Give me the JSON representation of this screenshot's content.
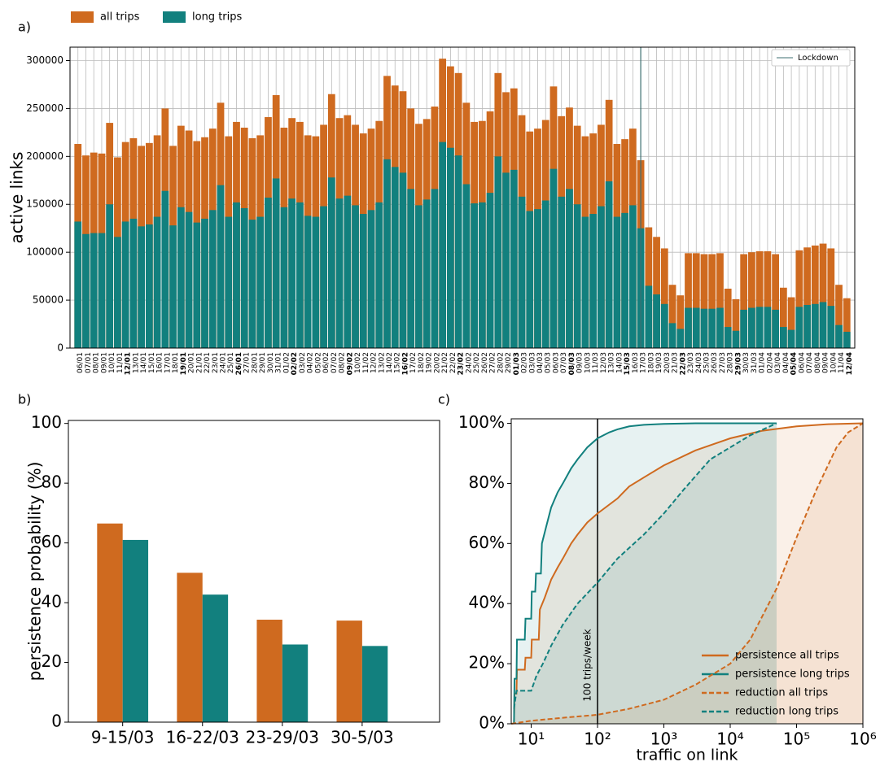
{
  "chart_data": [
    {
      "type": "bar",
      "bar_mode": "overlay",
      "panel_label": "a)",
      "ylabel": "active links",
      "categories": [
        "06/01",
        "07/01",
        "08/01",
        "09/01",
        "10/01",
        "11/01",
        "12/01",
        "13/01",
        "14/01",
        "15/01",
        "16/01",
        "17/01",
        "18/01",
        "19/01",
        "20/01",
        "21/01",
        "22/01",
        "23/01",
        "24/01",
        "25/01",
        "26/01",
        "27/01",
        "28/01",
        "29/01",
        "30/01",
        "31/01",
        "01/02",
        "02/02",
        "03/02",
        "04/02",
        "05/02",
        "06/02",
        "07/02",
        "08/02",
        "09/02",
        "10/02",
        "11/02",
        "12/02",
        "13/02",
        "14/02",
        "15/02",
        "16/02",
        "17/02",
        "18/02",
        "19/02",
        "20/02",
        "21/02",
        "22/02",
        "23/02",
        "24/02",
        "25/02",
        "26/02",
        "27/02",
        "28/02",
        "29/02",
        "01/03",
        "02/03",
        "03/03",
        "04/03",
        "05/03",
        "06/03",
        "07/03",
        "08/03",
        "09/03",
        "10/03",
        "11/03",
        "12/03",
        "13/03",
        "14/03",
        "15/03",
        "16/03",
        "17/03",
        "18/03",
        "19/03",
        "20/03",
        "21/03",
        "22/03",
        "23/03",
        "24/03",
        "25/03",
        "26/03",
        "27/03",
        "28/03",
        "29/03",
        "30/03",
        "31/03",
        "01/04",
        "02/04",
        "03/04",
        "04/04",
        "05/04",
        "06/04",
        "07/04",
        "08/04",
        "09/04",
        "10/04",
        "11/04",
        "12/04"
      ],
      "series": [
        {
          "name": "all trips",
          "color": "#cf6a1f",
          "values": [
            213000,
            201000,
            204000,
            203000,
            235000,
            199000,
            215000,
            219000,
            211000,
            214000,
            222000,
            250000,
            211000,
            232000,
            227000,
            216000,
            220000,
            229000,
            256000,
            221000,
            236000,
            230000,
            219000,
            222000,
            241000,
            264000,
            230000,
            240000,
            236000,
            222000,
            221000,
            233000,
            265000,
            240000,
            243000,
            233000,
            224000,
            229000,
            237000,
            284000,
            274000,
            268000,
            250000,
            234000,
            239000,
            252000,
            302000,
            294000,
            287000,
            256000,
            236000,
            237000,
            247000,
            287000,
            267000,
            271000,
            243000,
            226000,
            229000,
            238000,
            273000,
            242000,
            251000,
            232000,
            221000,
            224000,
            233000,
            259000,
            213000,
            218000,
            229000,
            196000,
            126000,
            116000,
            104000,
            66000,
            55000,
            99000,
            99000,
            98000,
            98000,
            99000,
            62000,
            51000,
            98000,
            100000,
            101000,
            101000,
            98000,
            63000,
            53000,
            102000,
            105000,
            107000,
            109000,
            104000,
            66000,
            52000
          ]
        },
        {
          "name": "long trips",
          "color": "#12807e",
          "values": [
            132000,
            119000,
            120000,
            120000,
            150000,
            116000,
            132000,
            135000,
            127000,
            129000,
            137000,
            164000,
            128000,
            147000,
            142000,
            131000,
            135000,
            144000,
            170000,
            137000,
            152000,
            146000,
            134000,
            137000,
            157000,
            177000,
            147000,
            156000,
            152000,
            138000,
            137000,
            148000,
            178000,
            156000,
            159000,
            149000,
            140000,
            144000,
            152000,
            197000,
            189000,
            183000,
            166000,
            149000,
            155000,
            166000,
            215000,
            209000,
            201000,
            171000,
            151000,
            152000,
            162000,
            200000,
            183000,
            186000,
            158000,
            143000,
            145000,
            154000,
            187000,
            158000,
            166000,
            150000,
            137000,
            140000,
            148000,
            174000,
            137000,
            141000,
            149000,
            125000,
            65000,
            56000,
            46000,
            26000,
            20000,
            42000,
            42000,
            41000,
            41000,
            42000,
            22000,
            18000,
            40000,
            42000,
            43000,
            43000,
            40000,
            22000,
            19000,
            43000,
            45000,
            46000,
            48000,
            44000,
            24000,
            17000
          ]
        }
      ],
      "ylim": [
        0,
        314000
      ],
      "yticks": [
        0,
        50000,
        100000,
        150000,
        200000,
        250000,
        300000
      ],
      "grid": true,
      "vline": {
        "category": "17/03",
        "label": "Lockdown",
        "color": "#3d6f71"
      }
    },
    {
      "type": "bar",
      "bar_mode": "grouped",
      "panel_label": "b)",
      "ylabel": "persistence probability (%)",
      "categories": [
        "9-15/03",
        "16-22/03",
        "23-29/03",
        "30-5/03"
      ],
      "series": [
        {
          "color": "#cf6a1f",
          "values": [
            66.5,
            50,
            34.3,
            34
          ]
        },
        {
          "color": "#12807e",
          "values": [
            61,
            42.7,
            26,
            25.5
          ]
        }
      ],
      "ylim": [
        0,
        101
      ],
      "yticks": [
        0,
        20,
        40,
        60,
        80,
        100
      ]
    },
    {
      "type": "line",
      "panel_label": "c)",
      "xlabel": "traffic on link",
      "xscale": "log",
      "fill_under": true,
      "xlim": [
        5,
        1000000
      ],
      "xticks": [
        {
          "value": 10,
          "label": "10¹"
        },
        {
          "value": 100,
          "label": "10²"
        },
        {
          "value": 1000,
          "label": "10³"
        },
        {
          "value": 10000,
          "label": "10⁴"
        },
        {
          "value": 100000,
          "label": "10⁵"
        },
        {
          "value": 1000000,
          "label": "10⁶"
        }
      ],
      "ylim": [
        0,
        101.5
      ],
      "yticks": [
        {
          "value": 0,
          "label": "0%"
        },
        {
          "value": 20,
          "label": "20%"
        },
        {
          "value": 40,
          "label": "40%"
        },
        {
          "value": 60,
          "label": "60%"
        },
        {
          "value": 80,
          "label": "80%"
        },
        {
          "value": 100,
          "label": "100%"
        }
      ],
      "series": [
        {
          "name": "persistence all trips",
          "color": "#cf6a1f",
          "dashed": false,
          "x": [
            5.5,
            5.6,
            6,
            6.1,
            8,
            8.2,
            10,
            10.2,
            13,
            13.5,
            16,
            20,
            25,
            30,
            40,
            50,
            70,
            100,
            200,
            300,
            500,
            1000,
            3000,
            10000,
            30000,
            100000,
            300000,
            1000000
          ],
          "values": [
            0,
            10,
            10,
            18,
            18,
            22,
            22,
            28,
            28,
            38,
            42,
            48,
            52,
            55,
            60,
            63,
            67,
            70,
            75,
            79,
            82,
            86,
            91,
            95,
            97.5,
            99,
            99.7,
            100
          ]
        },
        {
          "name": "persistence long trips",
          "color": "#12807e",
          "dashed": false,
          "x": [
            5.5,
            5.6,
            6,
            6.1,
            8,
            8.2,
            10,
            10.2,
            11.5,
            11.8,
            14,
            14.5,
            17,
            20,
            25,
            30,
            40,
            50,
            70,
            100,
            150,
            200,
            300,
            500,
            1000,
            3000,
            10000,
            50000
          ],
          "values": [
            0,
            15,
            15,
            28,
            28,
            35,
            35,
            44,
            44,
            50,
            50,
            60,
            66,
            72,
            77,
            80,
            85,
            88,
            92,
            95,
            97,
            98,
            99,
            99.5,
            99.8,
            100,
            100,
            100
          ]
        },
        {
          "name": "reduction all trips",
          "color": "#cf6a1f",
          "dashed": true,
          "x": [
            5,
            10,
            30,
            100,
            300,
            1000,
            3000,
            10000,
            20000,
            50000,
            100000,
            200000,
            400000,
            600000,
            1000000
          ],
          "values": [
            0,
            1,
            2,
            3,
            5,
            8,
            13,
            20,
            28,
            45,
            62,
            78,
            92,
            97,
            100
          ]
        },
        {
          "name": "reduction long trips",
          "color": "#12807e",
          "dashed": true,
          "x": [
            5.5,
            6,
            8,
            10,
            12,
            15,
            20,
            30,
            50,
            100,
            200,
            500,
            1000,
            2000,
            5000,
            10000,
            20000,
            50000
          ],
          "values": [
            5,
            11,
            11,
            11,
            16,
            20,
            26,
            33,
            40,
            47,
            55,
            63,
            70,
            78,
            88,
            92,
            96,
            100
          ]
        }
      ],
      "vline": {
        "x": 100,
        "label": "100 trips/week"
      }
    }
  ]
}
